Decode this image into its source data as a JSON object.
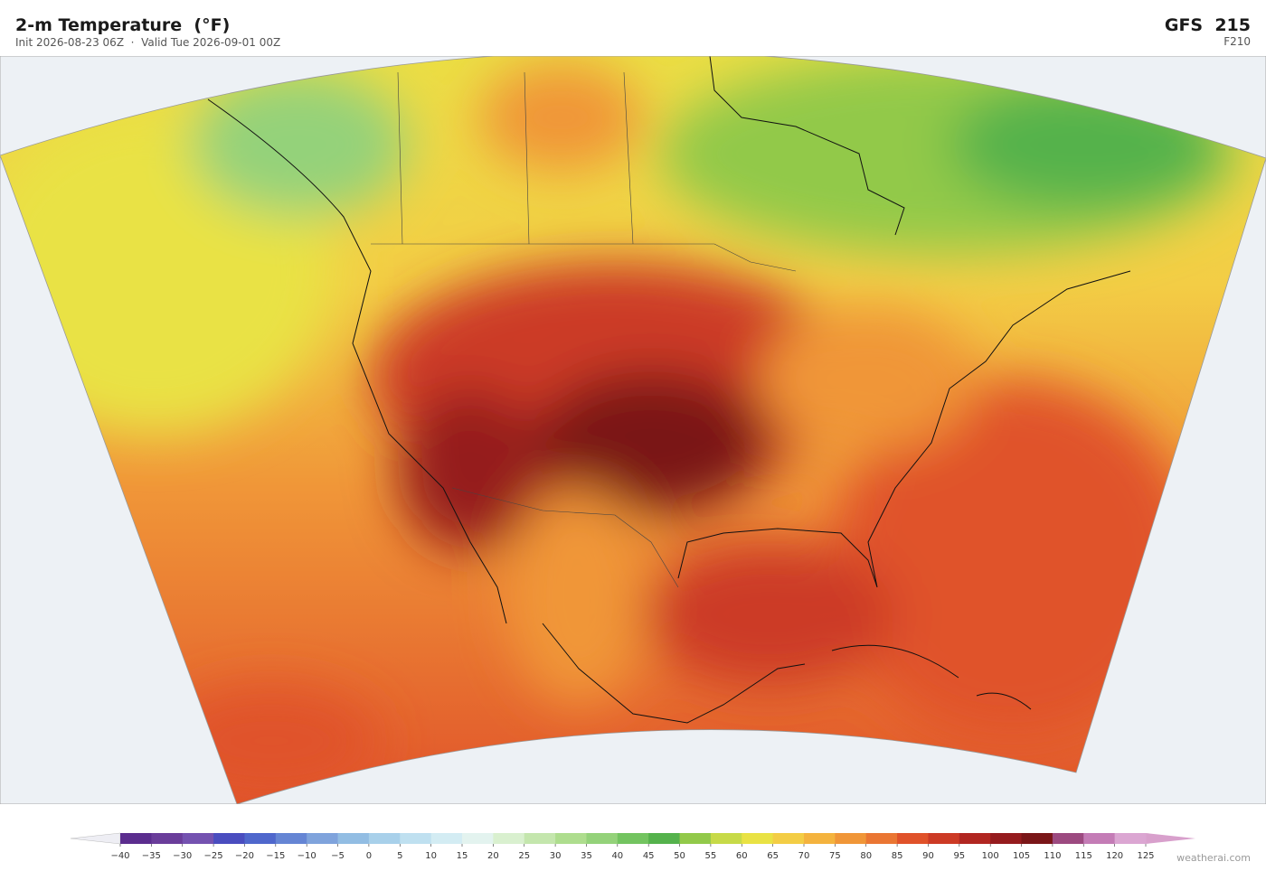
{
  "header": {
    "title": "2-m Temperature  (°F)",
    "subtitle": "Init 2026-08-23 06Z  ·  Valid Tue 2026-09-01 00Z",
    "model": "GFS  215",
    "forecast_hour": "F210"
  },
  "colorbar": {
    "ticks": [
      {
        "value": -40,
        "label": "−40"
      },
      {
        "value": -35,
        "label": "−35"
      },
      {
        "value": -30,
        "label": "−30"
      },
      {
        "value": -25,
        "label": "−25"
      },
      {
        "value": -20,
        "label": "−20"
      },
      {
        "value": -15,
        "label": "−15"
      },
      {
        "value": -10,
        "label": "−10"
      },
      {
        "value": -5,
        "label": "−5"
      },
      0,
      5,
      10,
      15,
      20,
      25,
      30,
      35,
      40,
      45,
      50,
      55,
      60,
      65,
      70,
      75,
      80,
      85,
      90,
      95,
      100,
      105,
      110,
      115,
      120,
      125
    ],
    "colors": [
      "#5b2d8e",
      "#6a3d9a",
      "#7452b0",
      "#4a4dbf",
      "#4f67cc",
      "#6585d4",
      "#7fa3dc",
      "#92bde3",
      "#a8d0ea",
      "#bfe0f0",
      "#d3ecf3",
      "#e3f3ef",
      "#d9f0cf",
      "#c4e6ad",
      "#aedd8e",
      "#94d27a",
      "#73c460",
      "#55b24c",
      "#92c94a",
      "#c7da48",
      "#e9e244",
      "#f3cd45",
      "#f4b33e",
      "#f09638",
      "#ea7633",
      "#e0522a",
      "#cc3a25",
      "#b12621",
      "#951b1e",
      "#7a1618",
      "#9c4a80",
      "#c47cb6",
      "#dba6d2"
    ],
    "under_color": "#eeeef4",
    "over_color": "#d8a0cc"
  },
  "footer": {
    "credit": "weatherai.com"
  }
}
